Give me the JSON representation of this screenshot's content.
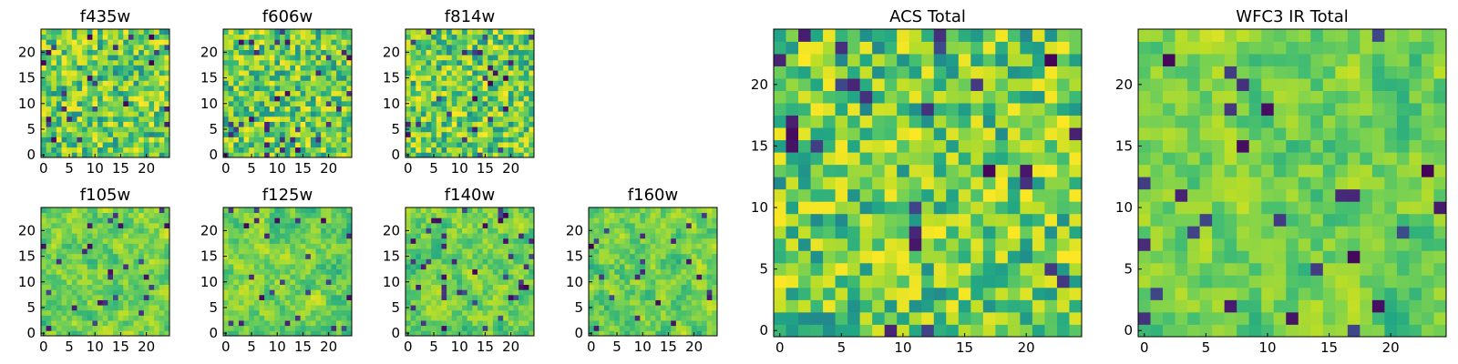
{
  "chart_data": [
    {
      "type": "heatmap",
      "panel": "f435w",
      "title": "f435w",
      "grid_size": [
        25,
        25
      ],
      "xlim": [
        0,
        24
      ],
      "ylim": [
        0,
        24
      ],
      "xticks": [
        0,
        5,
        10,
        15,
        20
      ],
      "yticks": [
        0,
        5,
        10,
        15,
        20
      ],
      "colormap": "viridis",
      "seed": 11
    },
    {
      "type": "heatmap",
      "panel": "f606w",
      "title": "f606w",
      "grid_size": [
        25,
        25
      ],
      "xlim": [
        0,
        24
      ],
      "ylim": [
        0,
        24
      ],
      "xticks": [
        0,
        5,
        10,
        15,
        20
      ],
      "yticks": [
        0,
        5,
        10,
        15,
        20
      ],
      "colormap": "viridis",
      "seed": 23
    },
    {
      "type": "heatmap",
      "panel": "f814w",
      "title": "f814w",
      "grid_size": [
        25,
        25
      ],
      "xlim": [
        0,
        24
      ],
      "ylim": [
        0,
        24
      ],
      "xticks": [
        0,
        5,
        10,
        15,
        20
      ],
      "yticks": [
        0,
        5,
        10,
        15,
        20
      ],
      "colormap": "viridis",
      "seed": 37
    },
    {
      "type": "heatmap",
      "panel": "f105w",
      "title": "f105w",
      "grid_size": [
        25,
        25
      ],
      "xlim": [
        0,
        24
      ],
      "ylim": [
        0,
        24
      ],
      "xticks": [
        0,
        5,
        10,
        15,
        20
      ],
      "yticks": [
        0,
        5,
        10,
        15,
        20
      ],
      "colormap": "viridis",
      "seed": 41
    },
    {
      "type": "heatmap",
      "panel": "f125w",
      "title": "f125w",
      "grid_size": [
        25,
        25
      ],
      "xlim": [
        0,
        24
      ],
      "ylim": [
        0,
        24
      ],
      "xticks": [
        0,
        5,
        10,
        15,
        20
      ],
      "yticks": [
        0,
        5,
        10,
        15,
        20
      ],
      "colormap": "viridis",
      "seed": 53
    },
    {
      "type": "heatmap",
      "panel": "f140w",
      "title": "f140w",
      "grid_size": [
        25,
        25
      ],
      "xlim": [
        0,
        24
      ],
      "ylim": [
        0,
        24
      ],
      "xticks": [
        0,
        5,
        10,
        15,
        20
      ],
      "yticks": [
        0,
        5,
        10,
        15,
        20
      ],
      "colormap": "viridis",
      "seed": 67
    },
    {
      "type": "heatmap",
      "panel": "f160w",
      "title": "f160w",
      "grid_size": [
        25,
        25
      ],
      "xlim": [
        0,
        24
      ],
      "ylim": [
        0,
        24
      ],
      "xticks": [
        0,
        5,
        10,
        15,
        20
      ],
      "yticks": [
        0,
        5,
        10,
        15,
        20
      ],
      "colormap": "viridis",
      "seed": 79
    },
    {
      "type": "heatmap",
      "panel": "acs-total",
      "title": "ACS Total",
      "grid_size": [
        25,
        25
      ],
      "xlim": [
        0,
        24
      ],
      "ylim": [
        0,
        24
      ],
      "xticks": [
        0,
        5,
        10,
        15,
        20
      ],
      "yticks": [
        0,
        5,
        10,
        15,
        20
      ],
      "colormap": "viridis",
      "seed": 97
    },
    {
      "type": "heatmap",
      "panel": "wfc3-total",
      "title": "WFC3 IR Total",
      "grid_size": [
        25,
        25
      ],
      "xlim": [
        0,
        24
      ],
      "ylim": [
        0,
        24
      ],
      "xticks": [
        0,
        5,
        10,
        15,
        20
      ],
      "yticks": [
        0,
        5,
        10,
        15,
        20
      ],
      "colormap": "viridis",
      "seed": 131
    }
  ]
}
